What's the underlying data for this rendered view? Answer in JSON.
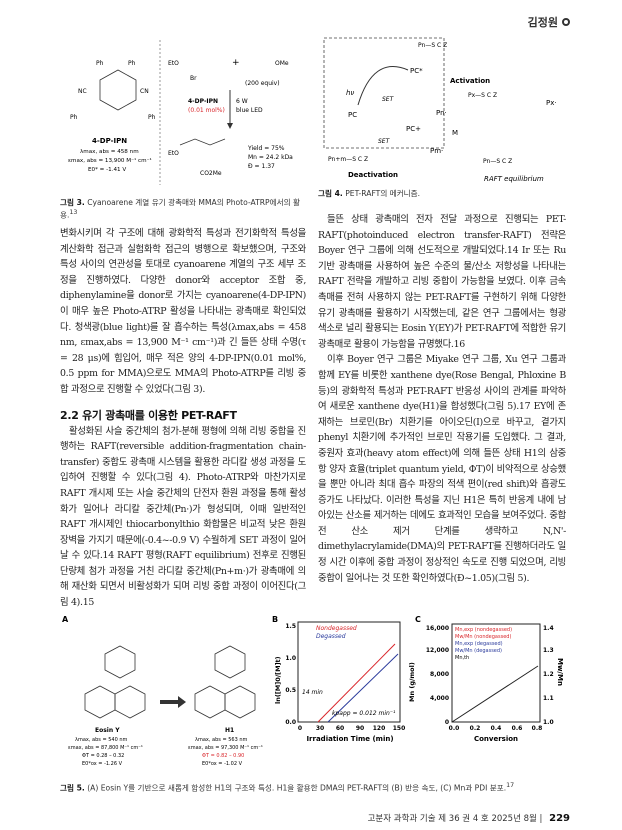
{
  "header": {
    "author": "김정원"
  },
  "fig3": {
    "caption_label": "그림 3.",
    "caption": "Cyanoarene 계열 유기 광촉매와 MMA의 Photo-ATRP에서의 활용.",
    "caption_ref": "13",
    "name": "4-DP-IPN",
    "lambda": "λmax, abs = 458 nm",
    "epsilon": "εmax, abs = 13,900 M⁻¹ cm⁻¹",
    "e0": "E0* = -1.41 V",
    "reagent_amount": "(200 equiv)",
    "cat": "4-DP-IPN",
    "cat_amt": "(0.01 mol%)",
    "light": "6 W",
    "light2": "blue LED",
    "yield": "Yield = 75%",
    "mn": "Mn = 24.2 kDa",
    "d": "Đ = 1.37",
    "eto": "EtO",
    "br": "Br",
    "me": "Me",
    "ome": "OMe",
    "co2me": "CO2Me"
  },
  "fig4": {
    "caption_label": "그림 4.",
    "caption": "PET-RAFT의 메커니즘.",
    "hv": "hν",
    "pc_star": "PC*",
    "pc": "PC",
    "pc_plus": "PC+",
    "set": "SET",
    "activation": "Activation",
    "deactivation": "Deactivation",
    "pn": "Pn·",
    "pm": "Pm·",
    "m": "M",
    "px": "Px·",
    "raft_eq": "RAFT equilibrium"
  },
  "left_text": {
    "p1": "변화시키며 각 구조에 대해 광화학적 특성과 전기화학적 특성을 계산화학 접근과 실험화학 접근의 병행으로 확보했으며, 구조와 특성 사이의 연관성을 토대로 cyanoarene 계열의 구조 세부 조정을 진행하였다. 다양한 donor와 acceptor 조합 중, diphenylamine을 donor로 가지는 cyanoarene(4-DP-IPN)이 매우 높은 Photo-ATRP 활성을 나타내는 광촉매로 확인되었다. 청색광(blue light)를 잘 흡수하는 특성(λmax,abs = 458 nm, εmax,abs = 13,900 M⁻¹ cm⁻¹)과 긴 들뜬 상태 수명(τ = 28 μs)에 힘입어, 매우 적은 양의 4-DP-IPN(0.01 mol%, 0.5 ppm for MMA)으로도 MMA의 Photo-ATRP를 리빙 중합 과정으로 진행할 수 있었다(그림 3).",
    "heading": "2.2 유기 광촉매를 이용한 PET-RAFT",
    "p2": "활성화된 사슬 중간체의 첨가-분해 평형에 의해 리빙 중합을 진행하는 RAFT(reversible addition-fragmentation chain-transfer) 중합도 광촉매 시스템을 활용한 라디칼 생성 과정을 도입하여 진행할 수 있다(그림 4). Photo-ATRP와 마찬가지로 RAFT 개시제 또는 사슬 중간체의 단전자 환원 과정을 통해 활성화가 일어나 라디칼 중간체(Pn·)가 형성되며, 이때 일반적인 RAFT 개시제인 thiocarbonylthio 화합물은 비교적 낮은 환원 장벽을 가지기 때문에(-0.4~-0.9 V) 수월하게 SET 과정이 일어날 수 있다.14 RAFT 평형(RAFT equilibrium) 전후로 진행된 단량체 첨가 과정을 거친 라디칼 중간체(Pn+m·)가 광촉매에 의해 재산화 되면서 비활성화가 되며 리빙 중합 과정이 이어진다(그림 4).15"
  },
  "right_text": {
    "p1": "들뜬 상태 광촉매의 전자 전달 과정으로 진행되는 PET-RAFT(photoinduced electron transfer-RAFT) 전략은 Boyer 연구 그룹에 의해 선도적으로 개발되었다.14 Ir 또는 Ru 기반 광촉매를 사용하여 높은 수준의 물/산소 저항성을 나타내는 RAFT 전략을 개발하고 리빙 중합이 가능함을 보였다. 이후 금속 촉매를 전혀 사용하지 않는 PET-RAFT를 구현하기 위해 다양한 유기 광촉매를 활용하기 시작했는데, 같은 연구 그룹에서는 형광 색소로 널리 활용되는 Eosin Y(EY)가 PET-RAFT에 적합한 유기 광촉매로 활용이 가능함을 규명했다.16",
    "p2": "이후 Boyer 연구 그룹은 Miyake 연구 그룹, Xu 연구 그룹과 함께 EY를 비롯한 xanthene dye(Rose Bengal, Phloxine B 등)의 광화학적 특성과 PET-RAFT 반응성 사이의 관계를 파악하여 새로운 xanthene dye(H1)을 합성했다(그림 5).17 EY에 존재하는 브로민(Br) 치환기를 아이오딘(I)으로 바꾸고, 곁가지 phenyl 치환기에 추가적인 브로민 작용기를 도입했다. 그 결과, 중원자 효과(heavy atom effect)에 의해 들뜬 상태 H1의 삼중항 양자 효율(triplet quantum yield, ΦT)이 비약적으로 상승했을 뿐만 아니라 최대 흡수 파장의 적색 편이(red shift)와 흡광도 증가도 나타났다. 이러한 특성을 지닌 H1은 특히 반응계 내에 남아있는 산소를 제거하는 데에도 효과적인 모습을 보여주었다. 중합 전 산소 제거 단계를 생략하고 N,N'-dimethylacrylamide(DMA)의 PET-RAFT를 진행하더라도 일정 시간 이후에 중합 과정이 정상적인 속도로 진행 되었으며, 리빙 중합이 일어나는 것 또한 확인하였다(Đ~1.05)(그림 5)."
  },
  "fig5": {
    "caption_label": "그림 5.",
    "caption": "(A) Eosin Y를 기반으로 새롭게 합성한 H1의 구조와 특성. H1을 활용한 DMA의 PET-RAFT의 (B) 반응 속도, (C) Mn과 PDI 분포.",
    "caption_ref": "17",
    "panel_a": "A",
    "panel_b": "B",
    "panel_c": "C",
    "eosin": {
      "name": "Eosin Y",
      "props": [
        "λmax, abs = 540 nm",
        "εmax, abs = 87,800 M⁻¹ cm⁻¹",
        "ΦT = 0.28 – 0.32",
        "E0*ox = -1.26 V"
      ]
    },
    "h1": {
      "name": "H1",
      "props": [
        "λmax, abs = 563 nm",
        "εmax, abs = 97,300 M⁻¹ cm⁻¹",
        "ΦT = 0.82 – 0.90",
        "E0*ox = -1.02 V"
      ]
    },
    "chart_b": {
      "ylabel": "ln([M]0/[M]t)",
      "xlabel": "Irradiation Time (min)",
      "xticks": [
        "0",
        "30",
        "60",
        "90",
        "120",
        "150"
      ],
      "yticks": [
        "0.0",
        "0.5",
        "1.0",
        "1.5"
      ],
      "legend": [
        "Nondegassed",
        "Degassed"
      ],
      "ann1": "14 min",
      "ann2": "kpapp = 0.012 min⁻¹"
    },
    "chart_c": {
      "ylabel": "Mn (g/mol)",
      "ylabel2": "Mw/Mn",
      "xlabel": "Conversion",
      "xticks": [
        "0.0",
        "0.2",
        "0.4",
        "0.6",
        "0.8"
      ],
      "yticks": [
        "0",
        "4,000",
        "8,000",
        "12,000",
        "16,000"
      ],
      "y2ticks": [
        "1.0",
        "1.1",
        "1.2",
        "1.3",
        "1.4"
      ],
      "legend": [
        "Mn,exp (nondegassed)",
        "Mw/Mn (nondegassed)",
        "Mn,exp (degassed)",
        "Mw/Mn (degassed)",
        "Mn,th"
      ]
    },
    "colors": {
      "nondegassed": "#d9262b",
      "degassed": "#2a3a9c"
    }
  },
  "footer": {
    "journal": "고분자 과학과 기술 제 36 권 4 호 2025년 8월",
    "page": "229"
  }
}
